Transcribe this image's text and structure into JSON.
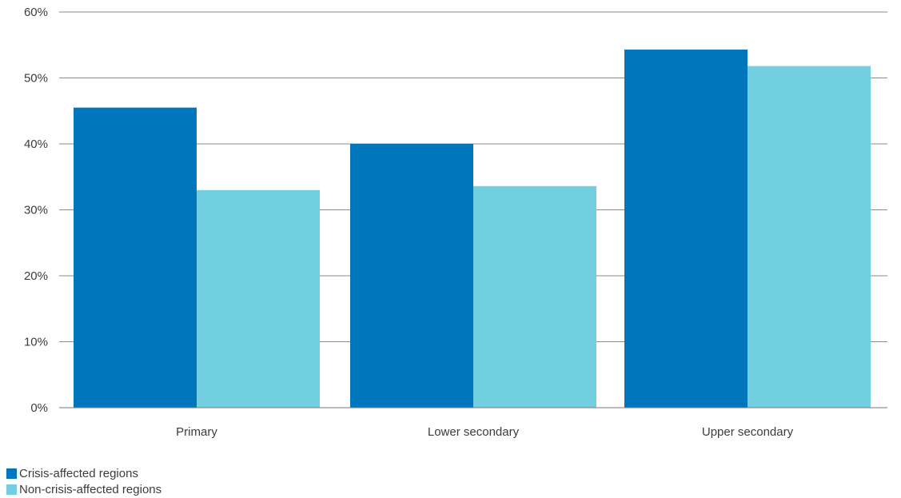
{
  "chart_data": {
    "type": "bar",
    "categories": [
      "Primary",
      "Lower secondary",
      "Upper secondary"
    ],
    "series": [
      {
        "name": "Crisis-affected regions",
        "color": "#0076bd",
        "values": [
          45.5,
          40.0,
          54.3
        ]
      },
      {
        "name": "Non-crisis-affected regions",
        "color": "#72cfe0",
        "values": [
          33.0,
          33.6,
          51.8
        ]
      }
    ],
    "y_ticks": [
      "0%",
      "10%",
      "20%",
      "30%",
      "40%",
      "50%",
      "60%"
    ],
    "ylim": [
      0,
      60
    ],
    "y_unit": "%",
    "grid": true,
    "legend_position": "bottom-left"
  }
}
